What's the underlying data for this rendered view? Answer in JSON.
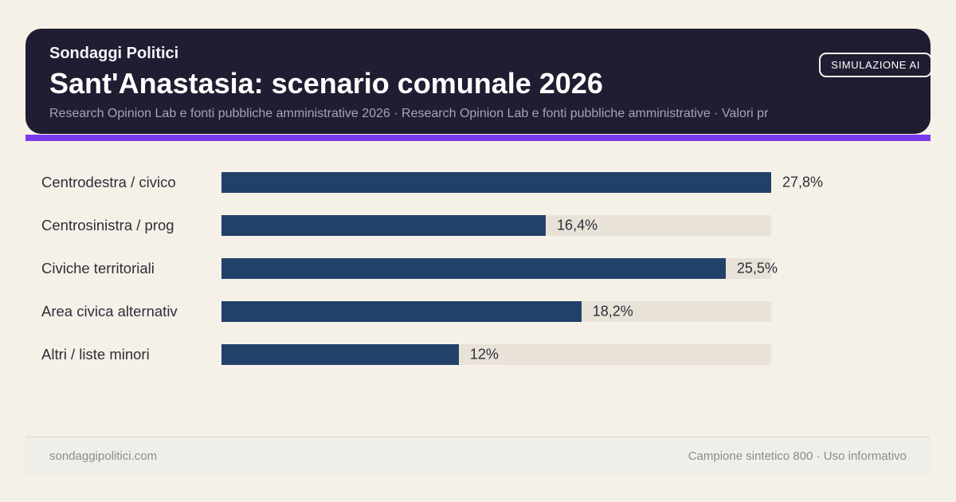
{
  "badge": {
    "label": "SIMULAZIONE AI"
  },
  "header": {
    "kicker": "Sondaggi Politici",
    "title": "Sant'Anastasia: scenario comunale 2026",
    "subtitle": "Research Opinion Lab e fonti pubbliche amministrative 2026 · Research Opinion Lab e fonti pubbliche amministrative · Valori pr"
  },
  "chart_data": {
    "type": "bar",
    "orientation": "horizontal",
    "title": "Sant'Anastasia: scenario comunale 2026",
    "categories": [
      "Centrodestra / civico",
      "Centrosinistra / prog",
      "Civiche territoriali",
      "Area civica alternativ",
      "Altri / liste minori"
    ],
    "values": [
      27.8,
      16.4,
      25.5,
      18.2,
      12
    ],
    "value_labels": [
      "27,8%",
      "16,4%",
      "25,5%",
      "18,2%",
      "12%"
    ],
    "unit": "%",
    "xlim": [
      0,
      27.8
    ],
    "grid": false,
    "legend": false,
    "bar_color": "#224169",
    "track_color": "#e8e2d8"
  },
  "footer": {
    "left": "sondaggipolitici.com",
    "right": "Campione sintetico 800 · Uso informativo"
  },
  "colors": {
    "page_bg": "#f5f1e8",
    "header_bg": "#201d32",
    "accent": "#7c3aed",
    "bar": "#224169",
    "track": "#e8e2d8"
  }
}
